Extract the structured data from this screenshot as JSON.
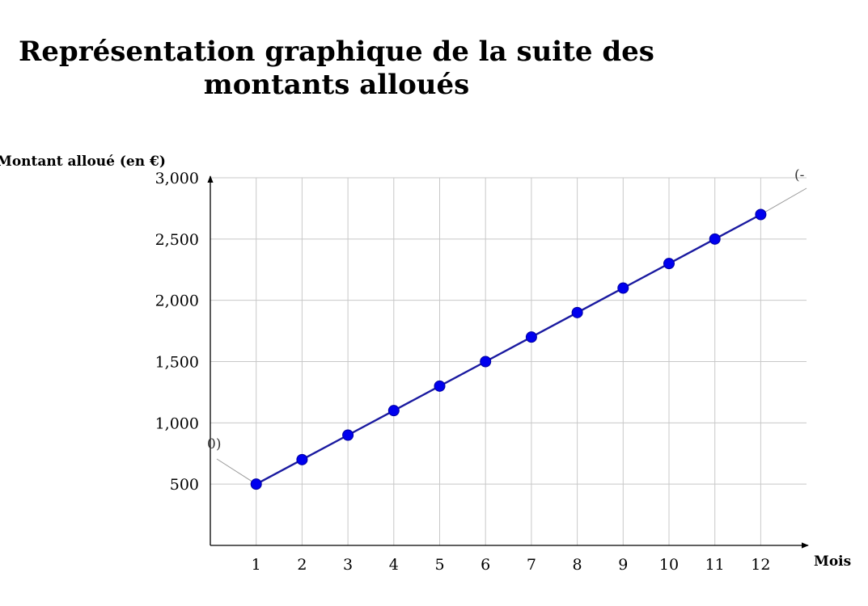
{
  "chart_data": {
    "type": "line",
    "title_lines": [
      "Représentation graphique de la suite des",
      "montants alloués"
    ],
    "xlabel": "Mois",
    "ylabel": "Montant alloué (en €)",
    "xlim": [
      0,
      13
    ],
    "ylim": [
      0,
      3000
    ],
    "x_ticks": [
      1,
      2,
      3,
      4,
      5,
      6,
      7,
      8,
      9,
      10,
      11,
      12
    ],
    "y_ticks": [
      500,
      1000,
      1500,
      2000,
      2500,
      3000
    ],
    "y_tick_labels": [
      "500",
      "1,000",
      "1,500",
      "2,000",
      "2,500",
      "3,000"
    ],
    "grid": true,
    "series": [
      {
        "x": [
          1,
          2,
          3,
          4,
          5,
          6,
          7,
          8,
          9,
          10,
          11,
          12
        ],
        "values": [
          500,
          700,
          900,
          1100,
          1300,
          1500,
          1700,
          1900,
          2100,
          2300,
          2500,
          2700
        ],
        "color": "#0000ee",
        "line_color": "#1a1aa0"
      }
    ],
    "annotations": [
      {
        "text": "0)",
        "x": 1,
        "y": 500
      },
      {
        "text": "(-",
        "x": 12,
        "y": 2700
      }
    ]
  }
}
